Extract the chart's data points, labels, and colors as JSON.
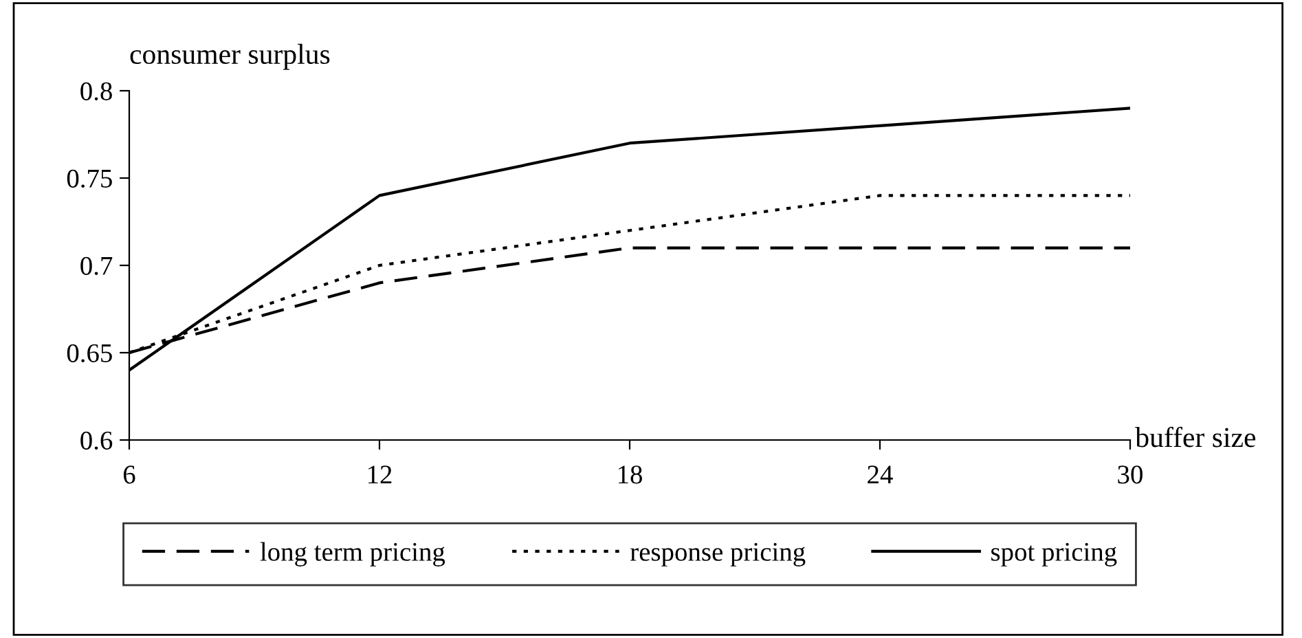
{
  "chart_data": {
    "type": "line",
    "xlabel": "buffer size",
    "ylabel": "consumer surplus",
    "x": [
      6,
      12,
      18,
      24,
      30
    ],
    "xlim": [
      6,
      30
    ],
    "xticks": [
      6,
      12,
      18,
      24,
      30
    ],
    "ylim": [
      0.6,
      0.8
    ],
    "yticks": [
      0.6,
      0.65,
      0.7,
      0.75,
      0.8
    ],
    "grid": false,
    "legend": "bottom",
    "marker": "none",
    "series": [
      {
        "name": "long term pricing",
        "color": "#000000",
        "line_style": "dashed",
        "values": [
          0.65,
          0.69,
          0.71,
          0.71,
          0.71
        ]
      },
      {
        "name": "response pricing",
        "color": "#000000",
        "line_style": "dotted",
        "values": [
          0.65,
          0.7,
          0.72,
          0.74,
          0.74
        ]
      },
      {
        "name": "spot pricing",
        "color": "#000000",
        "line_style": "solid",
        "values": [
          0.64,
          0.74,
          0.77,
          0.78,
          0.79
        ]
      }
    ]
  }
}
